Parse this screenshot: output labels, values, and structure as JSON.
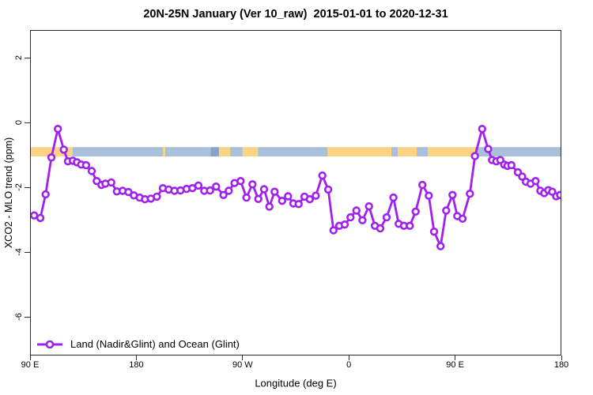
{
  "title": "20N-25N January (Ver 10_raw)  2015-01-01 to 2020-12-31",
  "legend": {
    "label": "Land (Nadir&Glint) and Ocean (Glint)"
  },
  "chart_data": {
    "type": "line",
    "title": "20N-25N January (Ver 10_raw)  2015-01-01 to 2020-12-31",
    "xlabel": "Longitude (deg E)",
    "ylabel": "XCO2 - MLO trend (ppm)",
    "xlim": [
      90,
      540
    ],
    "ylim": [
      -7.2,
      2.85
    ],
    "grid": false,
    "legend_position": "bottom-left",
    "x_ticks": [
      {
        "lon": 90,
        "label": "90 E"
      },
      {
        "lon": 180,
        "label": "180"
      },
      {
        "lon": 270,
        "label": "90 W"
      },
      {
        "lon": 360,
        "label": "0"
      },
      {
        "lon": 450,
        "label": "90 E"
      },
      {
        "lon": 540,
        "label": "180"
      }
    ],
    "y_ticks": [
      {
        "value": 2,
        "label": "2"
      },
      {
        "value": 0,
        "label": "0"
      },
      {
        "value": -2,
        "label": "-2"
      },
      {
        "value": -4,
        "label": "-4"
      },
      {
        "value": -6,
        "label": "-6"
      }
    ],
    "map_band": {
      "description": "land/ocean strip for 20N-25N drawn across the plot",
      "y_range": [
        -0.76,
        -1.05
      ],
      "land_color": "#FBD382",
      "ocean_color": "#A9BFDA",
      "ocean_dark_color": "#87A3C9",
      "segments": [
        {
          "from": 90,
          "to": 126,
          "type": "land"
        },
        {
          "from": 126,
          "to": 202.5,
          "type": "ocean"
        },
        {
          "from": 202.5,
          "to": 204.5,
          "type": "land"
        },
        {
          "from": 204.5,
          "to": 243,
          "type": "ocean"
        },
        {
          "from": 243,
          "to": 250,
          "type": "ocean_dark"
        },
        {
          "from": 250,
          "to": 259.5,
          "type": "land"
        },
        {
          "from": 259.5,
          "to": 270,
          "type": "ocean"
        },
        {
          "from": 270,
          "to": 283,
          "type": "land"
        },
        {
          "from": 283,
          "to": 342,
          "type": "ocean"
        },
        {
          "from": 342,
          "to": 396,
          "type": "land"
        },
        {
          "from": 396,
          "to": 401.5,
          "type": "ocean"
        },
        {
          "from": 401.5,
          "to": 417.5,
          "type": "land"
        },
        {
          "from": 417.5,
          "to": 427,
          "type": "ocean"
        },
        {
          "from": 427,
          "to": 467,
          "type": "land"
        },
        {
          "from": 467,
          "to": 540,
          "type": "ocean"
        }
      ]
    },
    "series": [
      {
        "name": "Land (Nadir&Glint) and Ocean (Glint)",
        "color": "#A020F0",
        "marker": "open-circle",
        "points": [
          [
            93.5,
            -2.87
          ],
          [
            98.7,
            -2.95
          ],
          [
            103.2,
            -2.22
          ],
          [
            108.1,
            -1.08
          ],
          [
            113.6,
            -0.2
          ],
          [
            118.6,
            -0.84
          ],
          [
            122.1,
            -1.2
          ],
          [
            126.2,
            -1.18
          ],
          [
            129.7,
            -1.23
          ],
          [
            133.3,
            -1.3
          ],
          [
            137.5,
            -1.32
          ],
          [
            142.2,
            -1.5
          ],
          [
            146.5,
            -1.81
          ],
          [
            150.5,
            -1.93
          ],
          [
            153.8,
            -1.89
          ],
          [
            158.8,
            -1.85
          ],
          [
            163.5,
            -2.13
          ],
          [
            168.4,
            -2.11
          ],
          [
            173.3,
            -2.15
          ],
          [
            177.9,
            -2.25
          ],
          [
            182.9,
            -2.32
          ],
          [
            187.3,
            -2.37
          ],
          [
            192.3,
            -2.35
          ],
          [
            197.4,
            -2.29
          ],
          [
            202.5,
            -2.03
          ],
          [
            207.4,
            -2.07
          ],
          [
            212.3,
            -2.11
          ],
          [
            217.4,
            -2.1
          ],
          [
            222.6,
            -2.05
          ],
          [
            227.5,
            -2.03
          ],
          [
            232.6,
            -1.95
          ],
          [
            237.5,
            -2.11
          ],
          [
            242.5,
            -2.1
          ],
          [
            247.6,
            -1.98
          ],
          [
            253.8,
            -2.24
          ],
          [
            258.3,
            -2.11
          ],
          [
            263.2,
            -1.87
          ],
          [
            268.3,
            -1.81
          ],
          [
            273.3,
            -2.32
          ],
          [
            278.4,
            -1.91
          ],
          [
            283.3,
            -2.36
          ],
          [
            288.2,
            -2.06
          ],
          [
            292.7,
            -2.6
          ],
          [
            297.1,
            -2.14
          ],
          [
            303.5,
            -2.42
          ],
          [
            308.5,
            -2.28
          ],
          [
            313.0,
            -2.5
          ],
          [
            317.5,
            -2.52
          ],
          [
            322.4,
            -2.29
          ],
          [
            326.9,
            -2.37
          ],
          [
            332.0,
            -2.26
          ],
          [
            337.6,
            -1.64
          ],
          [
            342.5,
            -2.07
          ],
          [
            347.0,
            -3.33
          ],
          [
            351.9,
            -3.19
          ],
          [
            356.5,
            -3.15
          ],
          [
            361.4,
            -2.93
          ],
          [
            366.4,
            -2.72
          ],
          [
            371.5,
            -3.02
          ],
          [
            377.1,
            -2.59
          ],
          [
            382.0,
            -3.19
          ],
          [
            386.6,
            -3.27
          ],
          [
            392.0,
            -2.93
          ],
          [
            397.8,
            -2.32
          ],
          [
            402.2,
            -3.13
          ],
          [
            406.7,
            -3.19
          ],
          [
            411.6,
            -3.19
          ],
          [
            416.6,
            -2.75
          ],
          [
            422.3,
            -1.93
          ],
          [
            427.7,
            -2.26
          ],
          [
            432.2,
            -3.37
          ],
          [
            437.7,
            -3.82
          ],
          [
            442.4,
            -2.72
          ],
          [
            447.8,
            -2.24
          ],
          [
            451.8,
            -2.89
          ],
          [
            456.3,
            -2.97
          ],
          [
            462.5,
            -2.2
          ],
          [
            466.8,
            -1.04
          ],
          [
            472.9,
            -0.2
          ],
          [
            478.0,
            -0.82
          ],
          [
            481.3,
            -1.16
          ],
          [
            484.9,
            -1.2
          ],
          [
            488.3,
            -1.16
          ],
          [
            491.6,
            -1.3
          ],
          [
            494.3,
            -1.34
          ],
          [
            497.7,
            -1.32
          ],
          [
            503.2,
            -1.54
          ],
          [
            506.8,
            -1.67
          ],
          [
            509.9,
            -1.83
          ],
          [
            513.9,
            -1.89
          ],
          [
            518.2,
            -1.81
          ],
          [
            522.2,
            -2.11
          ],
          [
            525.5,
            -2.18
          ],
          [
            528.9,
            -2.09
          ],
          [
            532.2,
            -2.14
          ],
          [
            535.6,
            -2.28
          ],
          [
            538.9,
            -2.24
          ]
        ]
      }
    ]
  }
}
